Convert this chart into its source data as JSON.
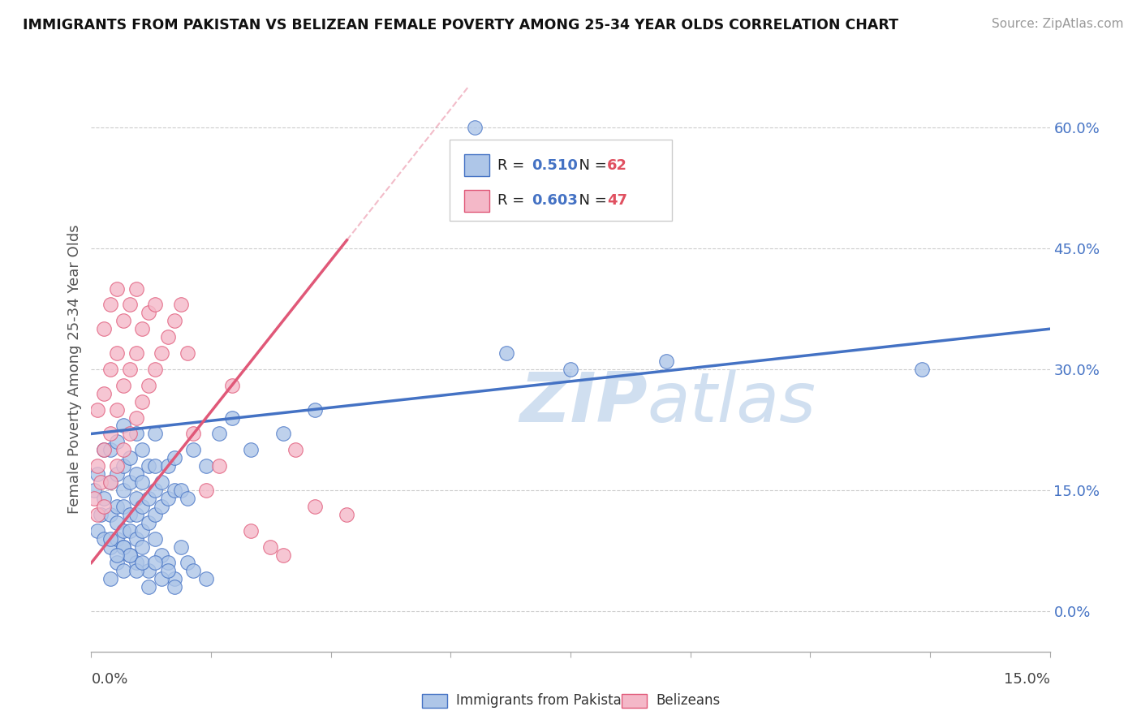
{
  "title": "IMMIGRANTS FROM PAKISTAN VS BELIZEAN FEMALE POVERTY AMONG 25-34 YEAR OLDS CORRELATION CHART",
  "source": "Source: ZipAtlas.com",
  "ylabel": "Female Poverty Among 25-34 Year Olds",
  "right_yticks": [
    0.0,
    0.15,
    0.3,
    0.45,
    0.6
  ],
  "right_ytick_labels": [
    "0.0%",
    "15.0%",
    "30.0%",
    "45.0%",
    "60.0%"
  ],
  "xlim": [
    0.0,
    0.15
  ],
  "ylim": [
    -0.05,
    0.65
  ],
  "pakistan_R": "0.510",
  "pakistan_N": "62",
  "belize_R": "0.603",
  "belize_N": "47",
  "pakistan_color": "#aec6e8",
  "pakistan_line_color": "#4472c4",
  "belize_color": "#f4b8c8",
  "belize_line_color": "#e05878",
  "watermark_zip": "ZIP",
  "watermark_atlas": "atlas",
  "watermark_color": "#d0dff0",
  "pakistan_scatter_x": [
    0.0005,
    0.001,
    0.001,
    0.0015,
    0.002,
    0.002,
    0.002,
    0.003,
    0.003,
    0.003,
    0.003,
    0.004,
    0.004,
    0.004,
    0.004,
    0.004,
    0.005,
    0.005,
    0.005,
    0.005,
    0.005,
    0.005,
    0.006,
    0.006,
    0.006,
    0.006,
    0.007,
    0.007,
    0.007,
    0.007,
    0.007,
    0.008,
    0.008,
    0.008,
    0.008,
    0.009,
    0.009,
    0.009,
    0.01,
    0.01,
    0.01,
    0.01,
    0.011,
    0.011,
    0.012,
    0.012,
    0.013,
    0.013,
    0.014,
    0.015,
    0.016,
    0.018,
    0.02,
    0.022,
    0.025,
    0.03,
    0.035,
    0.06,
    0.065,
    0.075,
    0.09,
    0.13
  ],
  "pakistan_scatter_y": [
    0.15,
    0.1,
    0.17,
    0.12,
    0.09,
    0.14,
    0.2,
    0.08,
    0.12,
    0.16,
    0.2,
    0.09,
    0.11,
    0.13,
    0.17,
    0.21,
    0.08,
    0.1,
    0.13,
    0.15,
    0.18,
    0.23,
    0.1,
    0.12,
    0.16,
    0.19,
    0.09,
    0.12,
    0.14,
    0.17,
    0.22,
    0.1,
    0.13,
    0.16,
    0.2,
    0.11,
    0.14,
    0.18,
    0.12,
    0.15,
    0.18,
    0.22,
    0.13,
    0.16,
    0.14,
    0.18,
    0.15,
    0.19,
    0.15,
    0.14,
    0.2,
    0.18,
    0.22,
    0.24,
    0.2,
    0.22,
    0.25,
    0.6,
    0.32,
    0.3,
    0.31,
    0.3
  ],
  "pakistan_scatter_y_below": [
    0.04,
    0.06,
    0.05,
    0.07,
    0.06,
    0.08,
    0.05,
    0.09,
    0.07,
    0.06,
    0.04,
    0.08,
    0.07,
    0.05,
    0.06,
    0.03,
    0.09,
    0.07,
    0.06,
    0.04,
    0.05,
    0.03,
    0.08,
    0.06,
    0.05,
    0.04
  ],
  "pakistan_scatter_x_below": [
    0.003,
    0.004,
    0.005,
    0.006,
    0.007,
    0.008,
    0.009,
    0.01,
    0.011,
    0.012,
    0.013,
    0.005,
    0.006,
    0.007,
    0.008,
    0.009,
    0.003,
    0.004,
    0.01,
    0.011,
    0.012,
    0.013,
    0.014,
    0.015,
    0.016,
    0.018
  ],
  "belize_scatter_x": [
    0.0005,
    0.001,
    0.001,
    0.001,
    0.0015,
    0.002,
    0.002,
    0.002,
    0.002,
    0.003,
    0.003,
    0.003,
    0.003,
    0.004,
    0.004,
    0.004,
    0.004,
    0.005,
    0.005,
    0.005,
    0.006,
    0.006,
    0.006,
    0.007,
    0.007,
    0.007,
    0.008,
    0.008,
    0.009,
    0.009,
    0.01,
    0.01,
    0.011,
    0.012,
    0.013,
    0.014,
    0.015,
    0.016,
    0.018,
    0.02,
    0.022,
    0.025,
    0.028,
    0.03,
    0.032,
    0.035,
    0.04
  ],
  "belize_scatter_y": [
    0.14,
    0.12,
    0.18,
    0.25,
    0.16,
    0.13,
    0.2,
    0.27,
    0.35,
    0.16,
    0.22,
    0.3,
    0.38,
    0.18,
    0.25,
    0.32,
    0.4,
    0.2,
    0.28,
    0.36,
    0.22,
    0.3,
    0.38,
    0.24,
    0.32,
    0.4,
    0.26,
    0.35,
    0.28,
    0.37,
    0.3,
    0.38,
    0.32,
    0.34,
    0.36,
    0.38,
    0.32,
    0.22,
    0.15,
    0.18,
    0.28,
    0.1,
    0.08,
    0.07,
    0.2,
    0.13,
    0.12
  ],
  "pak_trend_x": [
    0.0,
    0.15
  ],
  "pak_trend_y": [
    0.22,
    0.35
  ],
  "bel_trend_x": [
    0.0,
    0.04
  ],
  "bel_trend_y": [
    0.06,
    0.46
  ]
}
